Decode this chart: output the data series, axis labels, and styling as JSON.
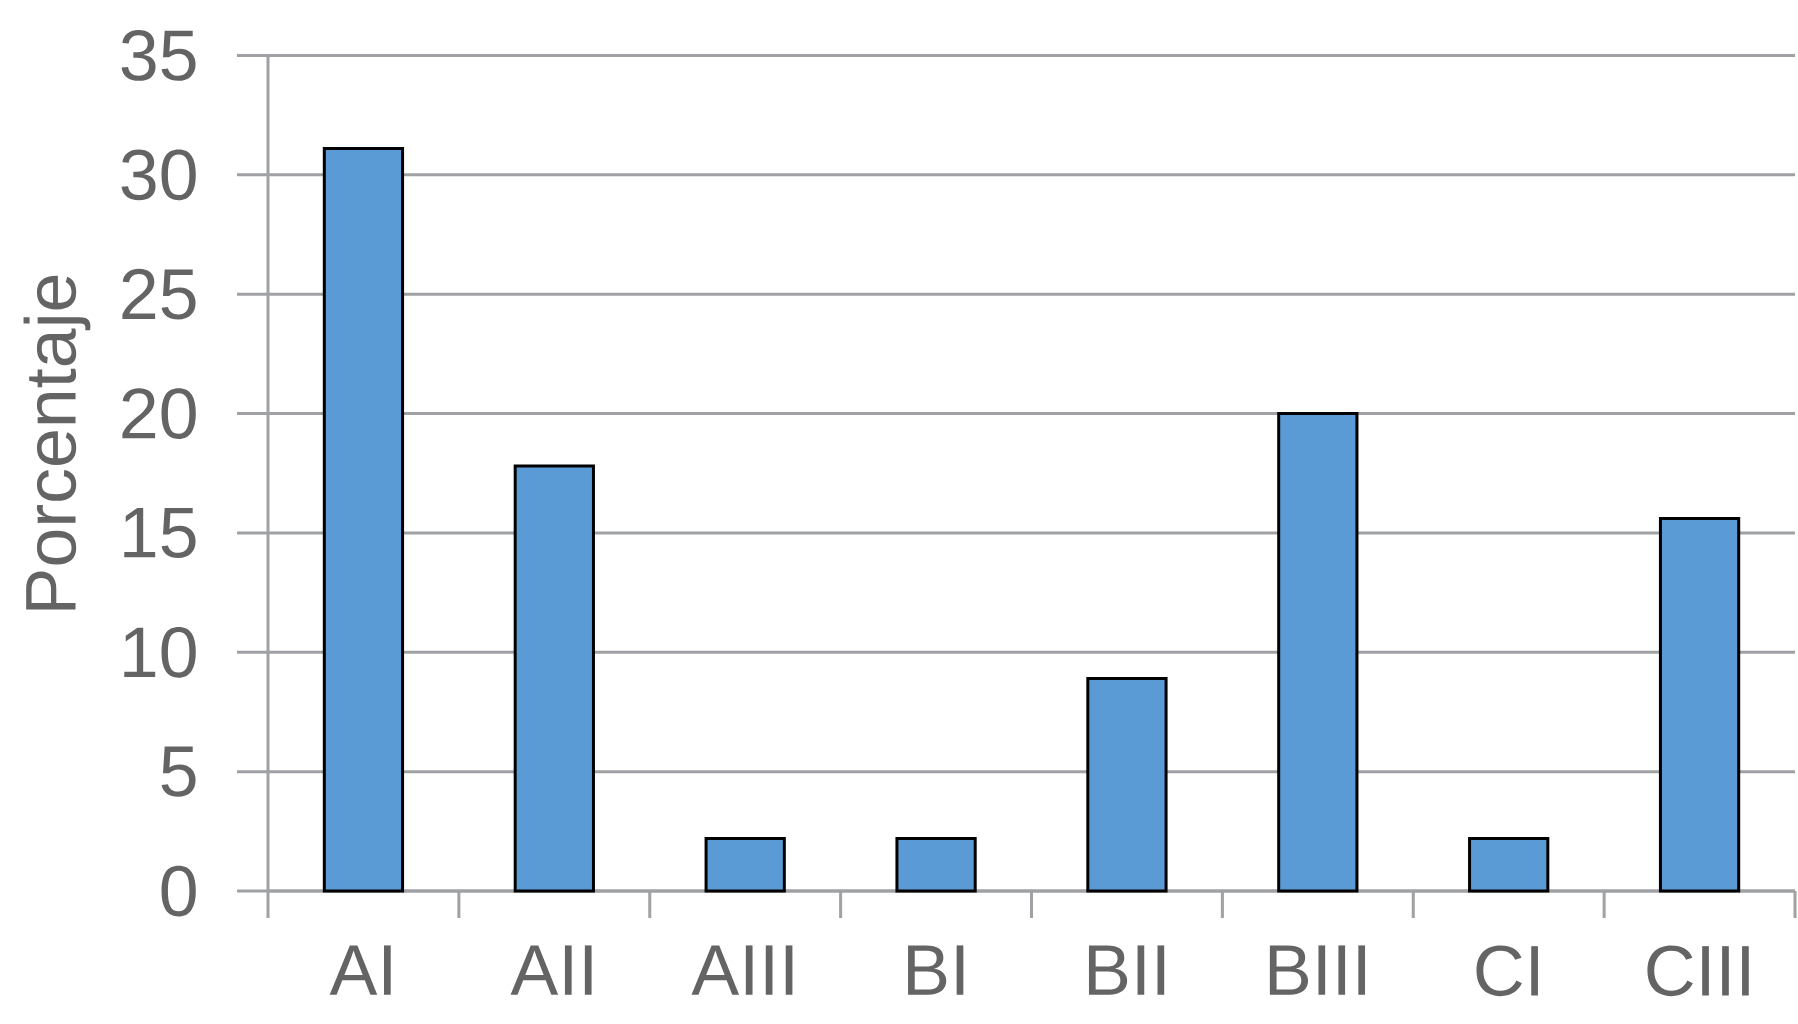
{
  "chart_data": {
    "type": "bar",
    "categories": [
      "AI",
      "AII",
      "AIII",
      "BI",
      "BII",
      "BIII",
      "CI",
      "CIII"
    ],
    "values": [
      31.1,
      17.8,
      2.2,
      2.2,
      8.9,
      20.0,
      2.2,
      15.6
    ],
    "color": "#5b9bd5",
    "ylabel": "Porcentaje",
    "ylim": [
      0,
      35
    ],
    "yticks": [
      0,
      5,
      10,
      15,
      20,
      25,
      30,
      35
    ],
    "grid": "y"
  }
}
